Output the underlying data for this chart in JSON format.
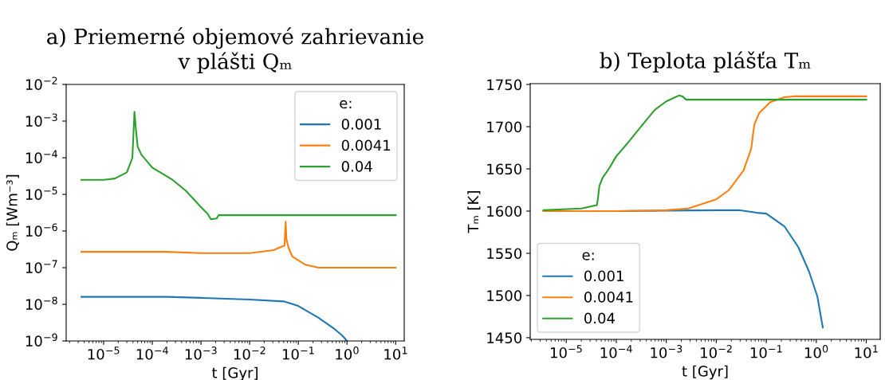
{
  "chart_data": [
    {
      "type": "line",
      "title": "a) Priemerné objemové zahrievanie\nv plášti Qₘ",
      "xlabel": "t [Gyr]",
      "ylabel": "Qₘ [Wm⁻³]",
      "legend_title": "e:",
      "legend": "top right",
      "log": "xy",
      "grid": false,
      "xlim": [
        1.7e-06,
        15
      ],
      "ylim": [
        1e-09,
        0.01
      ],
      "xticks": [
        {
          "value": 1e-05,
          "label": "10$^{−5}$"
        },
        {
          "value": 0.0001,
          "label": "10$^{−4}$"
        },
        {
          "value": 0.001,
          "label": "10$^{−3}$"
        },
        {
          "value": 0.01,
          "label": "10$^{−2}$"
        },
        {
          "value": 0.1,
          "label": "10$^{−1}$"
        },
        {
          "value": 1,
          "label": "10$^{0}$"
        },
        {
          "value": 10,
          "label": "10$^{1}$"
        }
      ],
      "yticks": [
        {
          "value": 1e-09,
          "label": "10$^{−9}$"
        },
        {
          "value": 1e-08,
          "label": "10$^{−8}$"
        },
        {
          "value": 1e-07,
          "label": "10$^{−7}$"
        },
        {
          "value": 1e-06,
          "label": "10$^{−6}$"
        },
        {
          "value": 1e-05,
          "label": "10$^{−5}$"
        },
        {
          "value": 0.0001,
          "label": "10$^{−4}$"
        },
        {
          "value": 0.001,
          "label": "10$^{−3}$"
        },
        {
          "value": 0.01,
          "label": "10$^{−2}$"
        }
      ],
      "series": [
        {
          "name": "0.001",
          "color": "#1f77b4",
          "x": [
            3.5e-06,
            1e-05,
            0.0001,
            0.0002,
            0.001,
            0.01,
            0.05,
            0.1,
            0.26,
            0.56,
            0.8,
            1.0
          ],
          "values": [
            1.6e-08,
            1.6e-08,
            1.6e-08,
            1.6e-08,
            1.5e-08,
            1.35e-08,
            1.2e-08,
            9e-09,
            4.3e-09,
            2.1e-09,
            1.4e-09,
            1e-09
          ]
        },
        {
          "name": "0.0041",
          "color": "#ff7f0e",
          "x": [
            3.5e-06,
            1e-05,
            0.0001,
            0.0002,
            0.001,
            0.01,
            0.031,
            0.047,
            0.052,
            0.055,
            0.057,
            0.063,
            0.076,
            0.14,
            0.26,
            1,
            10
          ],
          "values": [
            2.7e-07,
            2.7e-07,
            2.7e-07,
            2.7e-07,
            2.5e-07,
            2.5e-07,
            3e-07,
            3.8e-07,
            4e-07,
            1.8e-06,
            6e-07,
            3.5e-07,
            2e-07,
            1.2e-07,
            1e-07,
            1e-07,
            1e-07
          ]
        },
        {
          "name": "0.04",
          "color": "#2ca02c",
          "x": [
            3.5e-06,
            1e-05,
            1.7e-05,
            3e-05,
            3.9e-05,
            4.3e-05,
            4.6e-05,
            5e-05,
            6e-05,
            0.0001,
            0.00026,
            0.00049,
            0.001,
            0.00135,
            0.0016,
            0.0021,
            0.0023,
            10
          ],
          "values": [
            2.5e-05,
            2.5e-05,
            2.7e-05,
            4e-05,
            0.0001,
            0.0018,
            0.0006,
            0.0002,
            0.00012,
            5.4e-05,
            2.5e-05,
            1.25e-05,
            4.5e-06,
            3e-06,
            2.1e-06,
            2.2e-06,
            2.7e-06,
            2.7e-06
          ]
        }
      ]
    },
    {
      "type": "line",
      "title": "b) Teplota plášťa Tₘ",
      "xlabel": "t [Gyr]",
      "ylabel": "Tₘ [K]",
      "legend_title": "e:",
      "legend": "bottom left",
      "log": "x",
      "grid": false,
      "xlim": [
        1.9e-06,
        19
      ],
      "ylim": [
        1448,
        1751
      ],
      "xticks": [
        {
          "value": 1e-05,
          "label": "10$^{−5}$"
        },
        {
          "value": 0.0001,
          "label": "10$^{−4}$"
        },
        {
          "value": 0.001,
          "label": "10$^{−3}$"
        },
        {
          "value": 0.01,
          "label": "10$^{−2}$"
        },
        {
          "value": 0.1,
          "label": "10$^{−1}$"
        },
        {
          "value": 1,
          "label": "10$^{0}$"
        },
        {
          "value": 10,
          "label": "10$^{1}$"
        }
      ],
      "yticks": [
        1450,
        1500,
        1550,
        1600,
        1650,
        1700,
        1750
      ],
      "series": [
        {
          "name": "0.001",
          "color": "#1f77b4",
          "x": [
            3.5e-06,
            0.0001,
            0.01,
            0.03,
            0.065,
            0.1,
            0.23,
            0.44,
            0.72,
            1.05,
            1.35
          ],
          "values": [
            1600,
            1600,
            1601,
            1601,
            1598,
            1597,
            1582,
            1557,
            1528,
            1499,
            1462
          ]
        },
        {
          "name": "0.0041",
          "color": "#ff7f0e",
          "x": [
            3.5e-06,
            0.0001,
            0.001,
            0.00275,
            0.01,
            0.018,
            0.035,
            0.05,
            0.054,
            0.058,
            0.072,
            0.12,
            0.23,
            0.38,
            1,
            10
          ],
          "values": [
            1600,
            1600,
            1601,
            1603,
            1614,
            1625,
            1648,
            1674,
            1690,
            1703,
            1716,
            1729,
            1735,
            1736,
            1736,
            1736
          ]
        },
        {
          "name": "0.04",
          "color": "#2ca02c",
          "x": [
            3.5e-06,
            2e-05,
            4.1e-05,
            4.3e-05,
            4.6e-05,
            5.4e-05,
            7.1e-05,
            0.0001,
            0.000166,
            0.00031,
            0.00059,
            0.001,
            0.0018,
            0.0021,
            0.0025,
            10
          ],
          "values": [
            1601,
            1603,
            1607,
            1615,
            1630,
            1640,
            1650,
            1665,
            1680,
            1700,
            1720,
            1730,
            1737,
            1736,
            1732,
            1732
          ]
        }
      ]
    }
  ]
}
